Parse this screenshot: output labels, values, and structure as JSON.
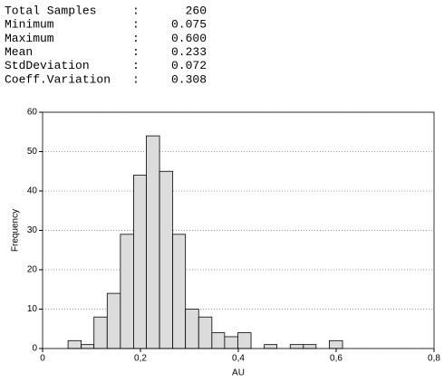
{
  "stats": [
    {
      "label": "Total Samples",
      "value": "260"
    },
    {
      "label": "Minimum",
      "value": "0.075"
    },
    {
      "label": "Maximum",
      "value": "0.600"
    },
    {
      "label": "Mean",
      "value": "0.233"
    },
    {
      "label": "StdDeviation",
      "value": "0.072"
    },
    {
      "label": "Coeff.Variation",
      "value": "0.308"
    }
  ],
  "separator": ":",
  "chart_data": {
    "type": "histogram",
    "x_label": "AU",
    "y_label": "Frequency",
    "bins": [
      0.052,
      0.079,
      0.105,
      0.132,
      0.159,
      0.186,
      0.212,
      0.239,
      0.266,
      0.292,
      0.319,
      0.346,
      0.372,
      0.399,
      0.426,
      0.453,
      0.479,
      0.506,
      0.533,
      0.559,
      0.586,
      0.613
    ],
    "values": [
      2,
      1,
      8,
      14,
      29,
      44,
      54,
      45,
      29,
      10,
      8,
      4,
      3,
      4,
      0,
      1,
      0,
      1,
      1,
      0,
      2
    ],
    "color": "#dcdcdc",
    "xlim": [
      0,
      0.8
    ],
    "xticks": [
      0,
      {
        "value": 0.2,
        "label": "0,2"
      },
      {
        "value": 0.4,
        "label": "0,4"
      },
      {
        "value": 0.6,
        "label": "0,6"
      },
      {
        "value": 0.8,
        "label": "0,8"
      }
    ],
    "ylim": [
      0,
      60
    ],
    "yticks": [
      0,
      10,
      20,
      30,
      40,
      50,
      60
    ],
    "grid": true
  }
}
